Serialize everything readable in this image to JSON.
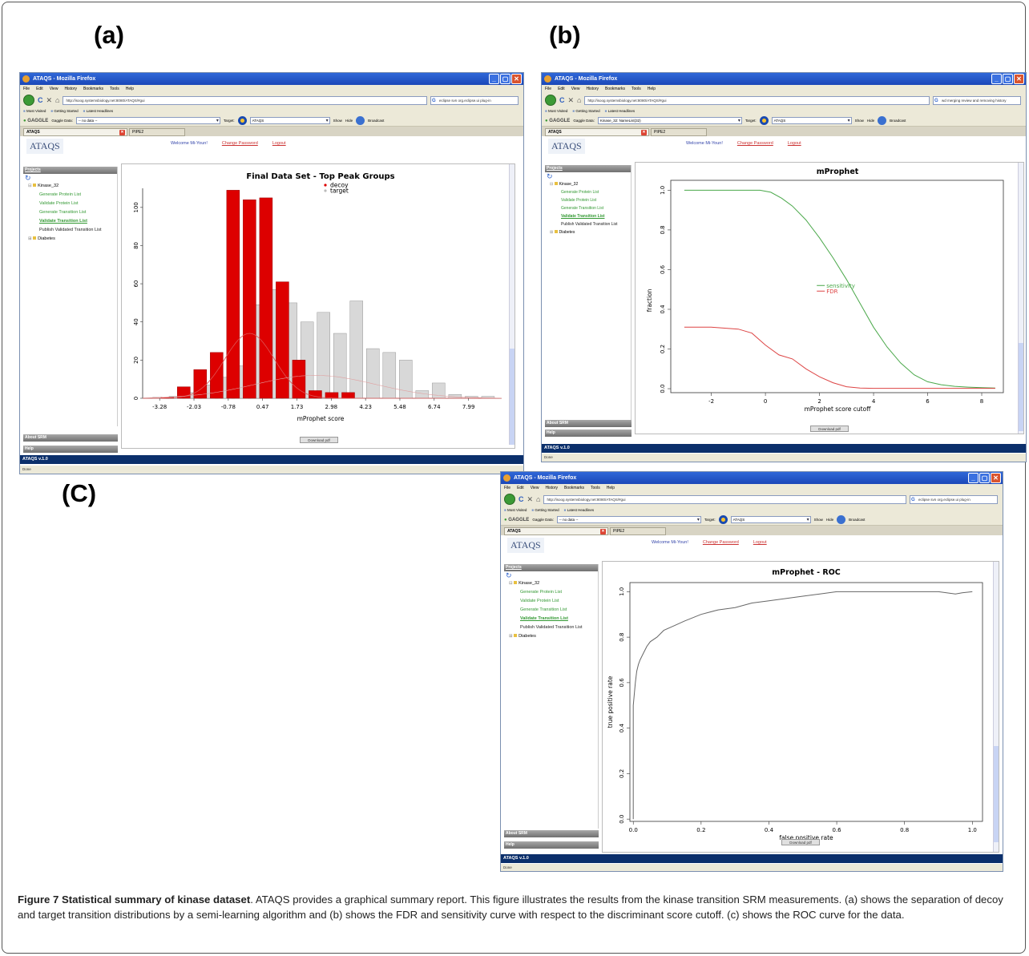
{
  "labels": {
    "a": "(a)",
    "b": "(b)",
    "c": "(C)"
  },
  "browser": {
    "title": "ATAQS - Mozilla Firefox",
    "menu": [
      "File",
      "Edit",
      "View",
      "History",
      "Bookmarks",
      "Tools",
      "Help"
    ],
    "bookmarks": [
      "Most Visited",
      "Getting Started",
      "Latest Headlines"
    ],
    "gaggle_label": "GAGGLE",
    "gaggle_data_label": "Gaggle Data:",
    "target_label": "Target:",
    "target_value": "ATAQS",
    "show_label": "Show",
    "hide_label": "Hide",
    "broadcast_label": "Broadcast",
    "tab1": "ATAQS",
    "tab2": "PIPE2",
    "status_done": "Done"
  },
  "windows": {
    "a": {
      "url": "http://isoog.systemsbiology.net:8080/ATAQS/#gui",
      "search": "eclipse svn org.eclipse.ui plug-in",
      "gaggle_data": "-- no data --"
    },
    "b": {
      "url": "http://isoog.systemsbiology.net:8080/ATAQS/#gui",
      "search": "wd merging review and removing history",
      "gaggle_data": "Kinase_32: NameList(32)"
    },
    "c": {
      "url": "http://isoog.systemsbiology.net:8080/ATAQS/#gui",
      "search": "eclipse svn org.eclipse.ui plug-in",
      "gaggle_data": "-- no data --"
    }
  },
  "app": {
    "logo": "ATAQS",
    "welcome": "Welcome Mi-Youn!",
    "change_password": "Change Password",
    "logout": "Logout",
    "projects_header": "Projects",
    "tree_root": "Kinase_32",
    "tree_items": [
      "Generate Protein List",
      "Validate Protein List",
      "Generate Transition List",
      "Validate Transition List",
      "Publish Validated Transition List"
    ],
    "tree_root2": "Diabetes",
    "about": "About SRM",
    "help": "Help",
    "version": "ATAQS v.1.0",
    "download": "Download pdf"
  },
  "chart_data": [
    {
      "type": "bar",
      "title": "Final Data Set - Top Peak Groups",
      "xlabel": "mProphet score",
      "ylabel": "",
      "ylim": [
        0,
        110
      ],
      "xticks": [
        "-3.28",
        "-2.03",
        "-0.78",
        "0.47",
        "1.73",
        "2.98",
        "4.23",
        "5.48",
        "6.74",
        "7.99"
      ],
      "yticks": [
        "0",
        "20",
        "40",
        "60",
        "80",
        "100"
      ],
      "legend_position": "top-right",
      "series": [
        {
          "name": "decoy",
          "color": "#dd0000",
          "x": [
            -3.0,
            -2.4,
            -1.8,
            -1.2,
            -0.6,
            0.0,
            0.6,
            1.2,
            1.8,
            2.4,
            3.0,
            3.6
          ],
          "values": [
            0.5,
            6,
            15,
            24,
            109,
            104,
            105,
            61,
            20,
            4,
            3,
            3
          ]
        },
        {
          "name": "target",
          "color": "#d8d8d8",
          "x": [
            -3.3,
            -2.7,
            -2.1,
            -1.5,
            -0.9,
            -0.3,
            0.3,
            0.9,
            1.5,
            2.1,
            2.7,
            3.3,
            3.9,
            4.5,
            5.1,
            5.7,
            6.3,
            6.9,
            7.5,
            8.1,
            8.7
          ],
          "values": [
            0.5,
            1,
            3,
            7,
            11,
            17,
            49,
            57,
            50,
            40,
            45,
            34,
            51,
            26,
            24,
            20,
            4,
            8,
            2,
            1,
            1
          ]
        }
      ]
    },
    {
      "type": "line",
      "title": "mProphet",
      "xlabel": "mProphet score cutoff",
      "ylabel": "fraction",
      "xlim": [
        -3.5,
        8.8
      ],
      "ylim": [
        -0.02,
        1.05
      ],
      "xticks": [
        "-2",
        "0",
        "2",
        "4",
        "6",
        "8"
      ],
      "yticks": [
        "0.0",
        "0.2",
        "0.4",
        "0.6",
        "0.8",
        "1.0"
      ],
      "legend_position": "center-right",
      "series": [
        {
          "name": "sensitivity",
          "color": "#4aa84a",
          "x": [
            -3,
            -1,
            -0.2,
            0.2,
            0.6,
            1.0,
            1.5,
            2.0,
            2.5,
            3.0,
            3.5,
            4.0,
            4.5,
            5.0,
            5.5,
            6.0,
            6.5,
            7.0,
            7.5,
            8.0,
            8.5
          ],
          "y": [
            1.0,
            1.0,
            1.0,
            0.99,
            0.96,
            0.92,
            0.85,
            0.76,
            0.66,
            0.55,
            0.43,
            0.31,
            0.21,
            0.13,
            0.07,
            0.035,
            0.02,
            0.012,
            0.008,
            0.005,
            0.003
          ]
        },
        {
          "name": "FDR",
          "color": "#dd4444",
          "x": [
            -3,
            -2,
            -1,
            -0.5,
            0,
            0.5,
            1.0,
            1.5,
            2.0,
            2.5,
            3.0,
            3.5,
            4.0,
            5.0,
            6.0,
            7.0,
            8.0,
            8.5
          ],
          "y": [
            0.31,
            0.31,
            0.3,
            0.28,
            0.22,
            0.17,
            0.15,
            0.1,
            0.06,
            0.03,
            0.01,
            0.003,
            0.002,
            0.002,
            0.002,
            0.002,
            0.002,
            0.002
          ]
        }
      ]
    },
    {
      "type": "line",
      "title": "mProphet - ROC",
      "xlabel": "false positive rate",
      "ylabel": "true positive rate",
      "xlim": [
        -0.01,
        1.03
      ],
      "ylim": [
        -0.01,
        1.04
      ],
      "xticks": [
        "0.0",
        "0.2",
        "0.4",
        "0.6",
        "0.8",
        "1.0"
      ],
      "yticks": [
        "0.0",
        "0.2",
        "0.4",
        "0.6",
        "0.8",
        "1.0"
      ],
      "series": [
        {
          "name": "",
          "color": "#666666",
          "x": [
            0,
            0,
            0.003,
            0.006,
            0.01,
            0.015,
            0.02,
            0.03,
            0.04,
            0.05,
            0.07,
            0.09,
            0.12,
            0.15,
            0.2,
            0.25,
            0.3,
            0.35,
            0.4,
            0.45,
            0.5,
            0.55,
            0.6,
            0.7,
            0.8,
            0.9,
            0.95,
            0.97,
            1.0
          ],
          "y": [
            0,
            0.5,
            0.55,
            0.6,
            0.65,
            0.68,
            0.7,
            0.73,
            0.76,
            0.78,
            0.8,
            0.83,
            0.85,
            0.87,
            0.9,
            0.92,
            0.93,
            0.95,
            0.96,
            0.97,
            0.98,
            0.99,
            1.0,
            1.0,
            1.0,
            1.0,
            0.99,
            0.995,
            1.0
          ]
        }
      ]
    }
  ],
  "caption": {
    "bold": "Figure 7 Statistical summary of kinase dataset",
    "text": ". ATAQS provides a graphical summary report. This figure illustrates the results from the kinase transition SRM measurements. (a) shows the separation of decoy and target transition distributions by a semi-learning algorithm and (b) shows the FDR and sensitivity curve with respect to the discriminant score cutoff. (c) shows the ROC curve for the data."
  }
}
